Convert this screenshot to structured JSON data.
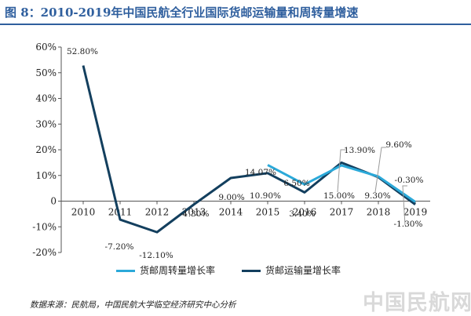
{
  "title": "图 8：2010-2019年中国民航全行业国际货邮运输量和周转量增速",
  "source": "数据来源：民航局，中国民航大学临空经济研究中心分析",
  "watermark": "中国民航网",
  "colors": {
    "title": "#2f5f9e",
    "turnover": "#2ba9d9",
    "volume": "#133f5e",
    "callout": "#9a9a9a"
  },
  "chart_data": {
    "type": "line",
    "categories": [
      "2010",
      "2011",
      "2012",
      "2013",
      "2014",
      "2015",
      "2016",
      "2017",
      "2018",
      "2019"
    ],
    "ylim": [
      -20,
      60
    ],
    "yticks": [
      -20,
      -10,
      0,
      10,
      20,
      30,
      40,
      50,
      60
    ],
    "ytick_labels": [
      "-20%",
      "-10%",
      "0",
      "10%",
      "20%",
      "30%",
      "40%",
      "50%",
      "60%"
    ],
    "series": [
      {
        "name": "货邮周转量增长率",
        "color": "#2ba9d9",
        "values": [
          null,
          null,
          null,
          null,
          null,
          14.07,
          6.5,
          13.9,
          9.6,
          -0.3
        ],
        "labels": [
          null,
          null,
          null,
          null,
          null,
          "14.07%",
          "6.50%",
          "13.90%",
          "9.60%",
          "-0.30%"
        ]
      },
      {
        "name": "货邮运输量增长率",
        "color": "#133f5e",
        "values": [
          52.8,
          -7.2,
          -12.1,
          -1.3,
          9.0,
          10.9,
          3.4,
          15.0,
          9.3,
          -1.3
        ],
        "labels": [
          "52.80%",
          "-7.20%",
          "-12.10%",
          "-1.30%",
          "9.00%",
          "10.90%",
          "3.40%",
          "15.00%",
          "9.30%",
          "-1.30%"
        ]
      }
    ]
  }
}
